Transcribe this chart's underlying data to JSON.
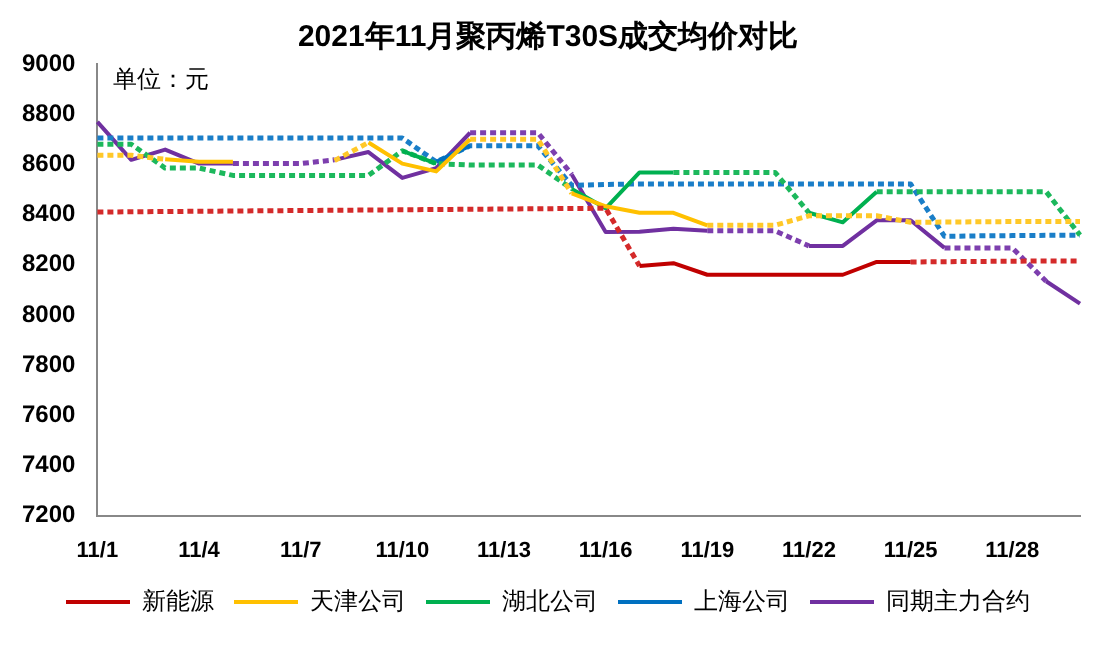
{
  "chart_data": {
    "type": "line",
    "title": "2021年11月聚丙烯T30S成交均价对比",
    "annotations": [
      "单位：元"
    ],
    "categories": [
      "11/1",
      null,
      null,
      "11/4",
      null,
      null,
      "11/7",
      null,
      null,
      "11/10",
      null,
      null,
      "11/13",
      null,
      null,
      "11/16",
      null,
      null,
      "11/19",
      null,
      null,
      "11/22",
      null,
      null,
      "11/25",
      null,
      null,
      "11/28",
      null,
      null
    ],
    "series": [
      {
        "name": "新能源",
        "color": "#c00000",
        "line_style": "solid",
        "values": [
          null,
          null,
          null,
          null,
          null,
          null,
          null,
          null,
          null,
          null,
          null,
          null,
          null,
          null,
          null,
          null,
          8195,
          8206,
          8160,
          8160,
          8160,
          8160,
          8160,
          8211,
          8211,
          null,
          null,
          null,
          null,
          null
        ]
      },
      {
        "color": "#d42a2a",
        "line_style": "dotted",
        "values": [
          8410,
          8411,
          8412,
          8413,
          8414,
          8415,
          8416,
          8417,
          8418,
          8419,
          8420,
          8421,
          8422,
          8423,
          8424,
          8425,
          8195,
          null,
          null,
          null,
          null,
          null,
          null,
          null,
          8211,
          8212,
          8213,
          8214,
          8215,
          8215
        ]
      },
      {
        "name": "天津公司",
        "color": "#ffc000",
        "line_style": "solid",
        "values": [
          null,
          null,
          8620,
          8610,
          8610,
          null,
          null,
          null,
          8687,
          8603,
          8572,
          8700,
          null,
          null,
          8484,
          8433,
          8407,
          8407,
          8357,
          null,
          null,
          null,
          null,
          null,
          null,
          null,
          null,
          null,
          null,
          null
        ]
      },
      {
        "color": "#ffc828",
        "line_style": "dotted",
        "values": [
          8636,
          8636,
          8620,
          null,
          null,
          null,
          null,
          8615,
          8687,
          null,
          null,
          8700,
          8700,
          8700,
          8484,
          null,
          null,
          null,
          8357,
          8357,
          8357,
          8395,
          8395,
          8395,
          8369,
          8370,
          8371,
          8372,
          8372,
          8372
        ]
      },
      {
        "name": "湖北公司",
        "color": "#00b050",
        "line_style": "solid",
        "values": [
          null,
          null,
          null,
          null,
          null,
          null,
          null,
          null,
          null,
          8654,
          8603,
          null,
          null,
          null,
          8502,
          8425,
          8568,
          8568,
          null,
          null,
          null,
          8407,
          8369,
          8491,
          null,
          null,
          null,
          null,
          null,
          null
        ]
      },
      {
        "color": "#1cb85c",
        "line_style": "dotted",
        "values": [
          8680,
          8680,
          8585,
          8585,
          8556,
          8556,
          8556,
          8556,
          8556,
          8654,
          8603,
          8597,
          8597,
          8597,
          8502,
          null,
          null,
          8568,
          8568,
          8568,
          8568,
          8407,
          null,
          8491,
          8491,
          8491,
          8491,
          8491,
          8491,
          8318
        ]
      },
      {
        "name": "上海公司",
        "color": "#0070c0",
        "line_style": "solid",
        "values": [
          null,
          null,
          null,
          null,
          null,
          null,
          null,
          null,
          null,
          null,
          8610,
          8674,
          null,
          null,
          null,
          null,
          null,
          null,
          null,
          null,
          null,
          null,
          null,
          null,
          null,
          null,
          null,
          null,
          null,
          null
        ]
      },
      {
        "color": "#1a7ec8",
        "line_style": "dotted",
        "values": [
          8705,
          8705,
          8705,
          8705,
          8705,
          8705,
          8705,
          8705,
          8705,
          8705,
          8610,
          8674,
          8674,
          8674,
          8516,
          8520,
          8522,
          8522,
          8522,
          8522,
          8522,
          8522,
          8522,
          8522,
          8522,
          8313,
          8315,
          8316,
          8317,
          8318
        ]
      },
      {
        "name": "同期主力合约",
        "color": "#7030a0",
        "line_style": "solid",
        "values": [
          8769,
          8618,
          8659,
          8603,
          8603,
          null,
          null,
          8618,
          8649,
          8546,
          8585,
          8726,
          null,
          null,
          8560,
          8330,
          8331,
          8343,
          8335,
          null,
          null,
          8275,
          8275,
          8377,
          8377,
          8267,
          null,
          null,
          8134,
          8045
        ]
      },
      {
        "color": "#7d3fae",
        "line_style": "dotted",
        "values": [
          null,
          null,
          null,
          null,
          8603,
          8603,
          8603,
          8618,
          null,
          null,
          null,
          8726,
          8726,
          8726,
          8560,
          null,
          null,
          null,
          8335,
          8335,
          8335,
          8275,
          null,
          null,
          null,
          8267,
          8267,
          8267,
          8134,
          null
        ]
      }
    ],
    "ylim": [
      7200,
      9000
    ],
    "yticks": [
      7200,
      7400,
      7600,
      7800,
      8000,
      8200,
      8400,
      8600,
      8800,
      9000
    ],
    "grid": false,
    "legend": "bottom",
    "marker": "none"
  }
}
